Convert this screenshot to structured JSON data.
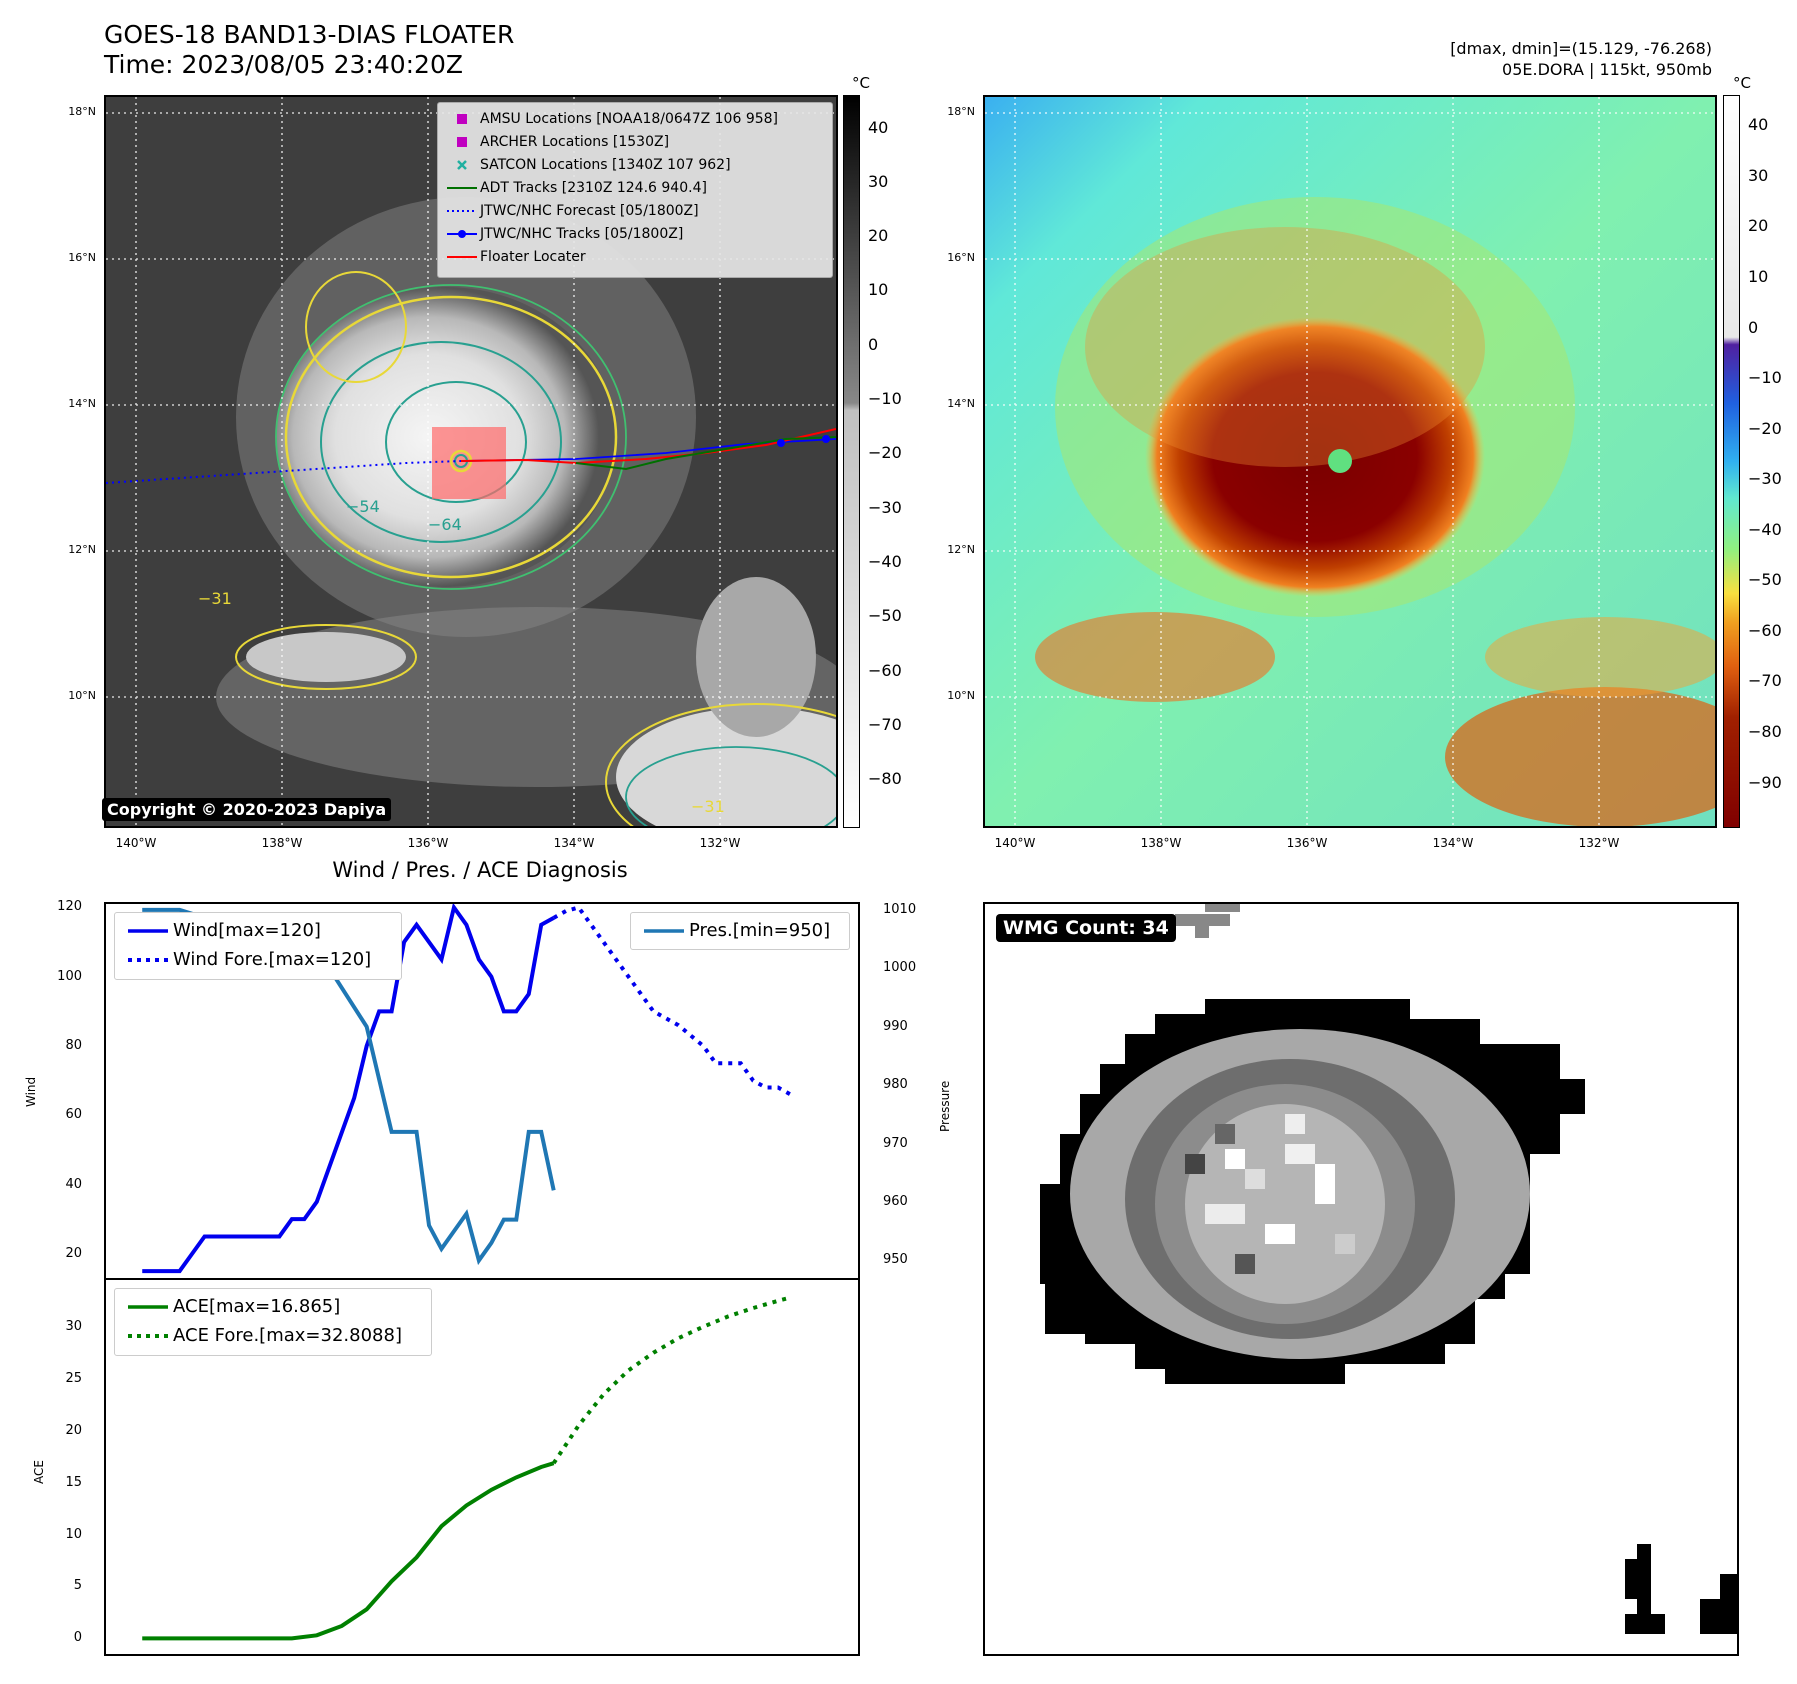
{
  "header": {
    "title": "GOES-18 BAND13-DIAS FLOATER",
    "time": "Time: 2023/08/05 23:40:20Z",
    "info_line1": "[dmax, dmin]=(15.129, -76.268)",
    "info_line2": "05E.DORA | 115kt, 950mb"
  },
  "maps": {
    "lat_labels": [
      "18°N",
      "16°N",
      "14°N",
      "12°N",
      "10°N"
    ],
    "lon_labels": [
      "140°W",
      "138°W",
      "136°W",
      "134°W",
      "132°W"
    ],
    "left_colorbar": {
      "unit": "°C",
      "ticks": [
        "40",
        "30",
        "20",
        "10",
        "0",
        "−10",
        "−20",
        "−30",
        "−40",
        "−50",
        "−60",
        "−70",
        "−80"
      ]
    },
    "right_colorbar": {
      "unit": "°C",
      "ticks": [
        "40",
        "30",
        "20",
        "10",
        "0",
        "−10",
        "−20",
        "−30",
        "−40",
        "−50",
        "−60",
        "−70",
        "−80",
        "−90"
      ]
    },
    "contour_labels": [
      "−31",
      "−54",
      "−64",
      "−31",
      "−31",
      "−31"
    ],
    "legend": [
      {
        "label": "AMSU Locations [NOAA18/0647Z 106 958]",
        "color": "#c000c0",
        "symbol": "square"
      },
      {
        "label": "ARCHER Locations [1530Z]",
        "color": "#c000c0",
        "symbol": "square"
      },
      {
        "label": "SATCON Locations [1340Z 107 962]",
        "color": "#20b0a0",
        "symbol": "x"
      },
      {
        "label": "ADT Tracks [2310Z 124.6 940.4]",
        "color": "#007000",
        "symbol": "line"
      },
      {
        "label": "JTWC/NHC Forecast [05/1800Z]",
        "color": "#0000ff",
        "symbol": "dotted"
      },
      {
        "label": "JTWC/NHC Tracks [05/1800Z]",
        "color": "#0000ff",
        "symbol": "line-dot"
      },
      {
        "label": "Floater Locater",
        "color": "#ff0000",
        "symbol": "line"
      }
    ],
    "copyright": "Copyright © 2020-2023 Dapiya"
  },
  "wmg": {
    "label": "WMG Count: 34"
  },
  "chart_data": [
    {
      "type": "line",
      "title": "Wind / Pres. / ACE Diagnosis",
      "ylabel": "Wind",
      "ylabel_right": "Pressure",
      "ylim": [
        13,
        121
      ],
      "ylim_right": [
        947,
        1011
      ],
      "yticks": [
        20,
        40,
        60,
        80,
        100,
        120
      ],
      "yticks_right": [
        950,
        960,
        970,
        980,
        990,
        1000,
        1010
      ],
      "series": [
        {
          "name": "Wind[max=120]",
          "color": "#0000ee",
          "style": "solid",
          "axis": "left",
          "x": [
            0,
            1,
            2,
            3,
            4,
            5,
            6,
            7,
            8,
            9,
            10,
            11,
            12,
            13,
            14,
            15,
            16,
            17,
            18,
            19,
            20,
            21,
            22,
            23,
            24,
            25,
            26,
            27,
            28,
            29,
            30,
            31,
            32,
            33
          ],
          "values": [
            15,
            15,
            15,
            15,
            20,
            25,
            25,
            25,
            25,
            25,
            25,
            25,
            30,
            30,
            35,
            45,
            55,
            65,
            80,
            90,
            90,
            110,
            115,
            110,
            105,
            120,
            115,
            105,
            100,
            90,
            90,
            95,
            115,
            117
          ]
        },
        {
          "name": "Wind Fore.[max=120]",
          "color": "#0000ee",
          "style": "dotted",
          "axis": "left",
          "x": [
            33,
            34,
            35,
            36,
            37,
            38,
            39,
            40,
            41,
            42,
            43,
            44,
            45,
            46,
            47,
            48,
            49,
            50,
            51,
            52
          ],
          "values": [
            117,
            119,
            120,
            115,
            110,
            105,
            100,
            95,
            90,
            88,
            86,
            83,
            80,
            75,
            75,
            75,
            70,
            68,
            68,
            66
          ]
        },
        {
          "name": "Pres.[min=950]",
          "color": "#1f77b4",
          "style": "solid",
          "axis": "right",
          "x": [
            0,
            3,
            6,
            10,
            13,
            15,
            18,
            20,
            22,
            23,
            24,
            25,
            26,
            27,
            28,
            29,
            30,
            31,
            32,
            33
          ],
          "values": [
            1010,
            1010,
            1008,
            1008,
            1008,
            1000,
            990,
            972,
            972,
            956,
            952,
            955,
            958,
            950,
            953,
            957,
            957,
            972,
            972,
            962
          ]
        },
        {
          "name": "",
          "color": "#1f77b4",
          "style": "solid",
          "axis": "right",
          "x": [
            33
          ],
          "values": [
            950
          ]
        }
      ]
    },
    {
      "type": "line",
      "ylabel": "ACE",
      "ylim": [
        -1.5,
        34.5
      ],
      "yticks": [
        0,
        5,
        10,
        15,
        20,
        25,
        30
      ],
      "series": [
        {
          "name": "ACE[max=16.865]",
          "color": "#008000",
          "style": "solid",
          "x": [
            0,
            4,
            8,
            12,
            14,
            16,
            18,
            20,
            22,
            24,
            26,
            28,
            30,
            32,
            33
          ],
          "values": [
            0,
            0,
            0,
            0,
            0.3,
            1.2,
            2.8,
            5.5,
            7.8,
            10.8,
            12.8,
            14.3,
            15.5,
            16.5,
            16.865
          ]
        },
        {
          "name": "ACE Fore.[max=32.8088]",
          "color": "#008000",
          "style": "dotted",
          "x": [
            33,
            35,
            37,
            39,
            41,
            43,
            45,
            47,
            49,
            51,
            52
          ],
          "values": [
            16.865,
            20.5,
            23.5,
            25.8,
            27.5,
            28.9,
            30.0,
            31.0,
            31.8,
            32.5,
            32.8088
          ]
        }
      ]
    }
  ]
}
